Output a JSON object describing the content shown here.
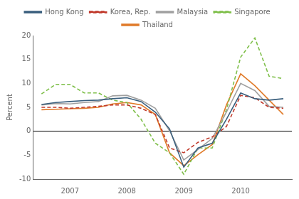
{
  "chart_data": {
    "type": "line",
    "ylabel": "Percent",
    "x": [
      2006.5,
      2006.75,
      2007.0,
      2007.25,
      2007.5,
      2007.75,
      2008.0,
      2008.25,
      2008.5,
      2008.75,
      2009.0,
      2009.25,
      2009.5,
      2009.75,
      2010.0,
      2010.25,
      2010.5,
      2010.75
    ],
    "series": [
      {
        "name": "Hong Kong",
        "color": "#3a5f7d",
        "line_style": "solid",
        "values": [
          5.6,
          6.0,
          6.2,
          6.4,
          6.5,
          6.8,
          7.0,
          6.2,
          4.0,
          0.5,
          -7.5,
          -3.5,
          -2.5,
          2.5,
          8.0,
          6.8,
          6.5,
          6.8
        ]
      },
      {
        "name": "Korea, Rep.",
        "color": "#c0392b",
        "line_style": "dashed",
        "values": [
          5.0,
          5.0,
          4.8,
          5.0,
          5.2,
          5.5,
          5.5,
          4.8,
          3.5,
          -3.5,
          -4.5,
          -2.3,
          -1.2,
          1.0,
          7.5,
          7.0,
          5.0,
          4.8
        ]
      },
      {
        "name": "Malaysia",
        "color": "#a0a0a0",
        "line_style": "solid",
        "values": [
          5.5,
          5.8,
          5.7,
          6.0,
          6.2,
          7.4,
          7.5,
          6.5,
          4.8,
          0.1,
          -6.0,
          -3.8,
          -1.5,
          4.0,
          10.0,
          8.5,
          5.2,
          5.0
        ]
      },
      {
        "name": "Singapore",
        "color": "#7fbf4a",
        "line_style": "dashed",
        "values": [
          7.8,
          9.8,
          9.8,
          8.0,
          8.0,
          6.5,
          6.0,
          2.5,
          -2.5,
          -4.5,
          -9.0,
          -3.5,
          -3.5,
          4.5,
          15.5,
          19.5,
          11.5,
          11.0
        ]
      },
      {
        "name": "Thailand",
        "color": "#e07b2a",
        "line_style": "solid",
        "values": [
          4.5,
          4.6,
          4.7,
          4.8,
          5.0,
          5.7,
          6.0,
          5.5,
          3.5,
          -4.5,
          -7.2,
          -4.9,
          -2.8,
          5.5,
          12.0,
          9.5,
          6.5,
          3.5
        ]
      }
    ],
    "xlim": [
      2006.35,
      2010.9
    ],
    "xticks": [
      2007,
      2008,
      2009,
      2010
    ],
    "ylim": [
      -10,
      20
    ],
    "yticks": [
      -10,
      -5,
      0,
      5,
      10,
      15,
      20
    ],
    "grid": false,
    "legend": "top"
  }
}
